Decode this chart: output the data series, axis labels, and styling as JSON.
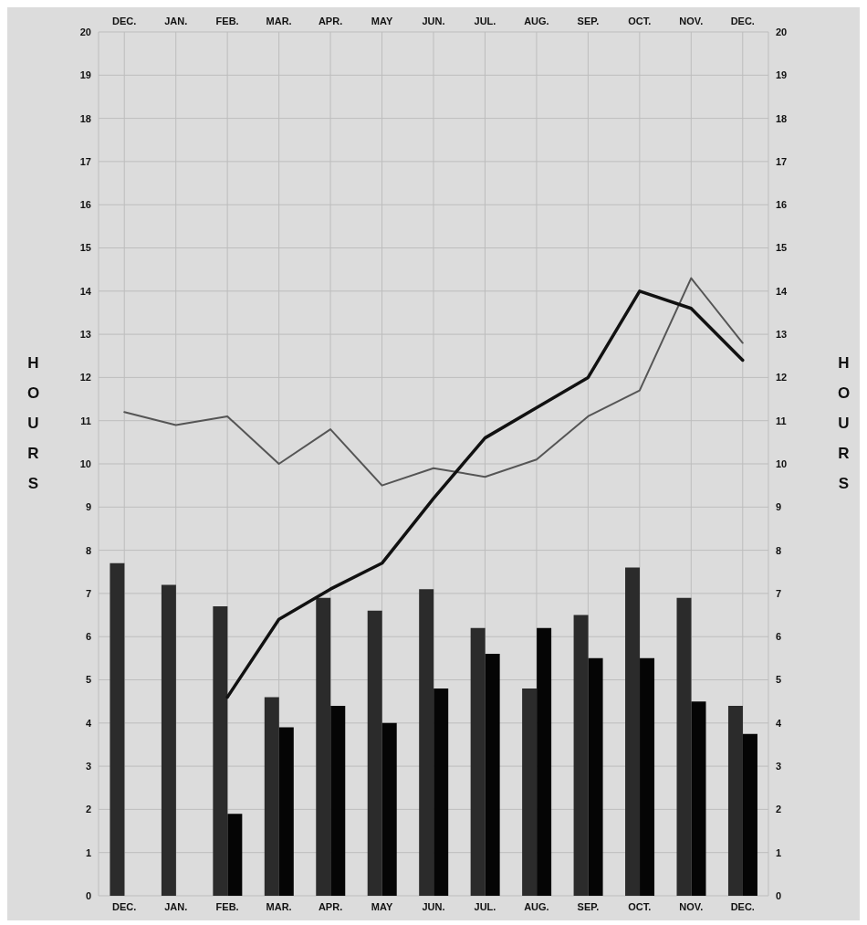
{
  "chart_data": {
    "type": "bar",
    "ylabel": "HOURS",
    "y2label": "HOURS",
    "categories": [
      "DEC.",
      "JAN.",
      "FEB.",
      "MAR.",
      "APR.",
      "MAY",
      "JUN.",
      "JUL.",
      "AUG.",
      "SEP.",
      "OCT.",
      "NOV.",
      "DEC."
    ],
    "series": [
      {
        "color": "#2b2b2b",
        "values": [
          7.7,
          7.2,
          6.7,
          4.6,
          6.9,
          6.6,
          7.1,
          6.2,
          4.8,
          6.5,
          7.6,
          6.9,
          4.4
        ]
      },
      {
        "color": "#050505",
        "values": [
          null,
          null,
          1.9,
          3.9,
          4.4,
          4.0,
          4.8,
          5.6,
          6.2,
          5.5,
          5.5,
          4.5,
          3.75
        ]
      },
      {
        "type": "line",
        "color": "#555555",
        "values": [
          11.2,
          10.9,
          11.1,
          10.0,
          10.8,
          9.5,
          9.9,
          9.7,
          10.1,
          11.1,
          11.7,
          14.3,
          12.8
        ]
      },
      {
        "type": "line",
        "color": "#111111",
        "values": [
          null,
          null,
          4.6,
          6.4,
          7.1,
          7.7,
          9.2,
          10.6,
          11.3,
          12.0,
          14.0,
          13.6,
          12.4
        ]
      }
    ],
    "ylim": [
      0,
      20
    ],
    "yticks": [
      0,
      1,
      2,
      3,
      4,
      5,
      6,
      7,
      8,
      9,
      10,
      11,
      12,
      13,
      14,
      15,
      16,
      17,
      18,
      19,
      20
    ],
    "y2lim": [
      0,
      20
    ],
    "y2ticks": [
      0,
      1,
      2,
      3,
      4,
      5,
      6,
      7,
      8,
      9,
      10,
      11,
      12,
      13,
      14,
      15,
      16,
      17,
      18,
      19,
      20
    ],
    "grid": true,
    "legend": false
  }
}
